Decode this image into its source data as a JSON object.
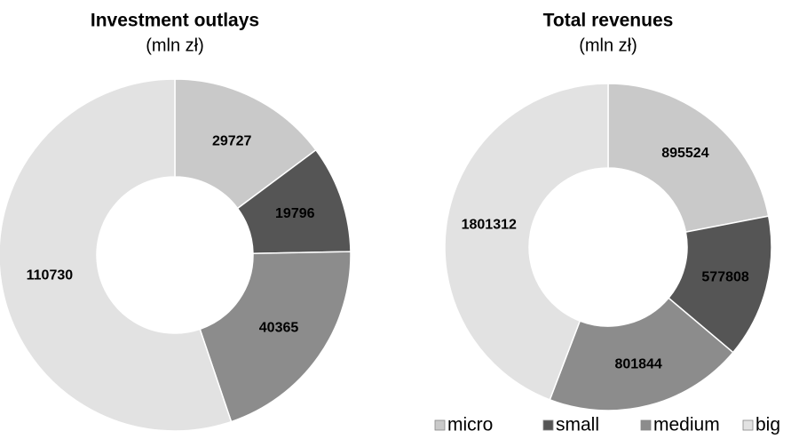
{
  "chart_data": [
    {
      "type": "donut",
      "title": "Investment outlays",
      "subtitle": "(mln zł)",
      "values": [
        29727,
        19796,
        40365,
        110730
      ],
      "colors": [
        "#c9c9c9",
        "#555555",
        "#8c8c8c",
        "#e2e2e2"
      ]
    },
    {
      "type": "donut",
      "title": "Total revenues",
      "subtitle": "(mln zł)",
      "categories": [
        "micro",
        "small",
        "medium",
        "big"
      ],
      "values": [
        895524,
        577808,
        801844,
        1801312
      ],
      "colors": [
        "#c9c9c9",
        "#555555",
        "#8c8c8c",
        "#e2e2e2"
      ]
    }
  ]
}
